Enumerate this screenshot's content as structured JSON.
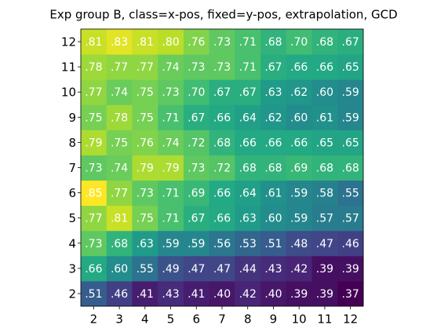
{
  "chart_data": {
    "type": "heatmap",
    "title": "Exp group B, class=x-pos, fixed=y-pos, extrapolation, GCD",
    "x_categories": [
      2,
      3,
      4,
      5,
      6,
      7,
      8,
      9,
      10,
      11,
      12
    ],
    "y_categories": [
      2,
      3,
      4,
      5,
      6,
      7,
      8,
      9,
      10,
      11,
      12
    ],
    "colormap": "viridis",
    "values": [
      [
        0.51,
        0.46,
        0.41,
        0.43,
        0.41,
        0.4,
        0.42,
        0.4,
        0.39,
        0.39,
        0.37
      ],
      [
        0.66,
        0.6,
        0.55,
        0.49,
        0.47,
        0.47,
        0.44,
        0.43,
        0.42,
        0.39,
        0.39
      ],
      [
        0.73,
        0.68,
        0.63,
        0.59,
        0.59,
        0.56,
        0.53,
        0.51,
        0.48,
        0.47,
        0.46
      ],
      [
        0.77,
        0.81,
        0.75,
        0.71,
        0.67,
        0.66,
        0.63,
        0.6,
        0.59,
        0.57,
        0.57
      ],
      [
        0.85,
        0.77,
        0.73,
        0.71,
        0.69,
        0.66,
        0.64,
        0.61,
        0.59,
        0.58,
        0.55
      ],
      [
        0.73,
        0.74,
        0.79,
        0.79,
        0.73,
        0.72,
        0.68,
        0.68,
        0.69,
        0.68,
        0.68
      ],
      [
        0.79,
        0.75,
        0.76,
        0.74,
        0.72,
        0.68,
        0.66,
        0.66,
        0.66,
        0.65,
        0.65
      ],
      [
        0.75,
        0.78,
        0.75,
        0.71,
        0.67,
        0.66,
        0.64,
        0.62,
        0.6,
        0.61,
        0.59
      ],
      [
        0.77,
        0.74,
        0.75,
        0.73,
        0.7,
        0.67,
        0.67,
        0.63,
        0.62,
        0.6,
        0.59
      ],
      [
        0.78,
        0.77,
        0.77,
        0.74,
        0.73,
        0.73,
        0.71,
        0.67,
        0.66,
        0.66,
        0.65
      ],
      [
        0.81,
        0.83,
        0.81,
        0.8,
        0.76,
        0.73,
        0.71,
        0.68,
        0.7,
        0.68,
        0.67
      ]
    ],
    "value_labels": [
      [
        ".51",
        ".46",
        ".41",
        ".43",
        ".41",
        ".40",
        ".42",
        ".40",
        ".39",
        ".39",
        ".37"
      ],
      [
        ".66",
        ".60",
        ".55",
        ".49",
        ".47",
        ".47",
        ".44",
        ".43",
        ".42",
        ".39",
        ".39"
      ],
      [
        ".73",
        ".68",
        ".63",
        ".59",
        ".59",
        ".56",
        ".53",
        ".51",
        ".48",
        ".47",
        ".46"
      ],
      [
        ".77",
        ".81",
        ".75",
        ".71",
        ".67",
        ".66",
        ".63",
        ".60",
        ".59",
        ".57",
        ".57"
      ],
      [
        ".85",
        ".77",
        ".73",
        ".71",
        ".69",
        ".66",
        ".64",
        ".61",
        ".59",
        ".58",
        ".55"
      ],
      [
        ".73",
        ".74",
        ".79",
        ".79",
        ".73",
        ".72",
        ".68",
        ".68",
        ".69",
        ".68",
        ".68"
      ],
      [
        ".79",
        ".75",
        ".76",
        ".74",
        ".72",
        ".68",
        ".66",
        ".66",
        ".66",
        ".65",
        ".65"
      ],
      [
        ".75",
        ".78",
        ".75",
        ".71",
        ".67",
        ".66",
        ".64",
        ".62",
        ".60",
        ".61",
        ".59"
      ],
      [
        ".77",
        ".74",
        ".75",
        ".73",
        ".70",
        ".67",
        ".67",
        ".63",
        ".62",
        ".60",
        ".59"
      ],
      [
        ".78",
        ".77",
        ".77",
        ".74",
        ".73",
        ".73",
        ".71",
        ".67",
        ".66",
        ".66",
        ".65"
      ],
      [
        ".81",
        ".83",
        ".81",
        ".80",
        ".76",
        ".73",
        ".71",
        ".68",
        ".70",
        ".68",
        ".67"
      ]
    ]
  }
}
